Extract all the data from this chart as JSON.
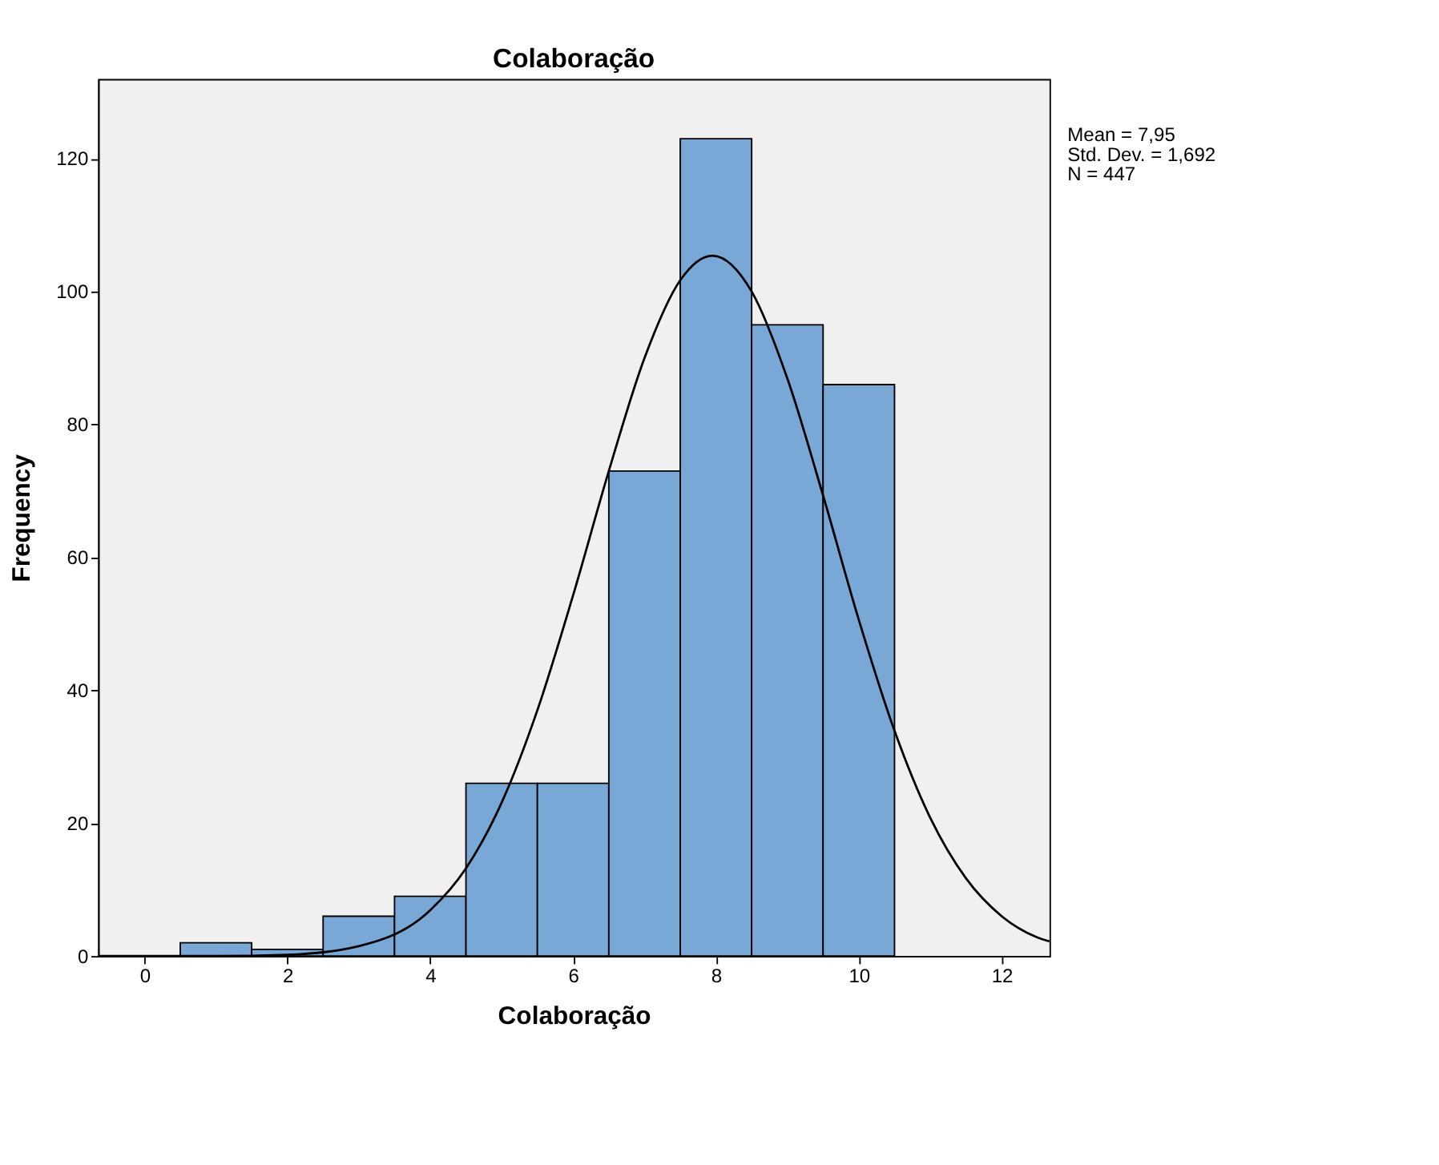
{
  "chart_data": {
    "type": "histogram",
    "title": "Colaboração",
    "xlabel": "Colaboração",
    "ylabel": "Frequency",
    "xlim": [
      -0.65,
      12.67
    ],
    "xticks": [
      0,
      2,
      4,
      6,
      8,
      10,
      12
    ],
    "ylim": [
      0,
      132
    ],
    "yticks": [
      0,
      20,
      40,
      60,
      80,
      100,
      120
    ],
    "grid": false,
    "marker": "none",
    "line_style": "solid",
    "annotations": [
      "Mean = 7,95",
      "Std. Dev. = 1,692",
      "N = 447"
    ],
    "series": [
      {
        "color": "#7aa8d6",
        "bins": [
          0.5,
          1.5,
          2.5,
          3.5,
          4.5,
          5.5,
          6.5,
          7.5,
          8.5,
          9.5,
          10.5
        ],
        "values": [
          2,
          1,
          6,
          9,
          26,
          26,
          73,
          123,
          95,
          86
        ]
      },
      {
        "type": "line",
        "color": "#000000",
        "x": [
          -0.65,
          1,
          2,
          3,
          4,
          4.5,
          5,
          5.5,
          6,
          6.5,
          7,
          7.5,
          7.95,
          8.5,
          9,
          9.5,
          10,
          10.5,
          11,
          11.5,
          12,
          12.5,
          12.67
        ],
        "values": [
          0,
          0,
          0.2,
          1.5,
          6.9,
          13.2,
          23.1,
          37.0,
          54.3,
          73.0,
          90.0,
          101.7,
          105.4,
          100.0,
          86.9,
          69.3,
          50.6,
          33.9,
          20.8,
          11.7,
          6.0,
          2.8,
          2.2
        ]
      }
    ]
  }
}
